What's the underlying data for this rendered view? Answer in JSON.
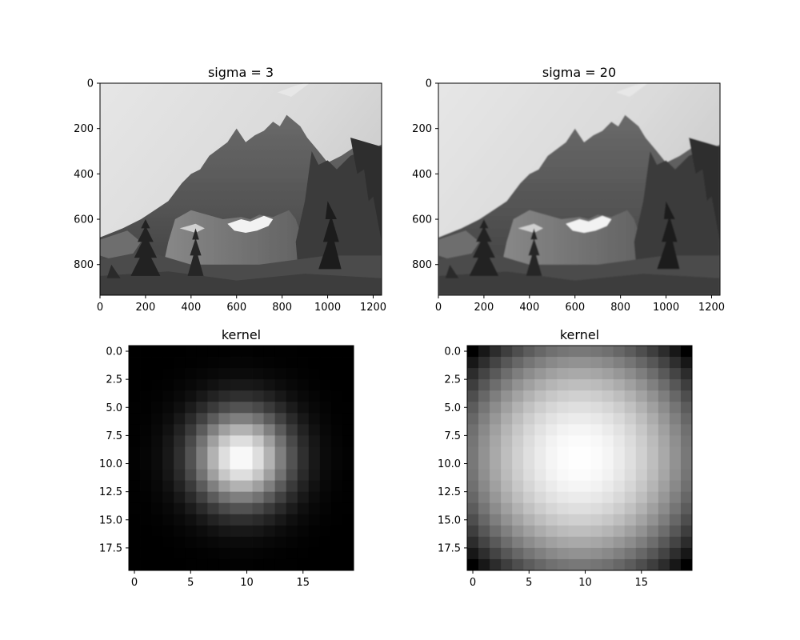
{
  "chart_data": [
    {
      "type": "image",
      "title": "sigma = 3",
      "image_size": [
        1237,
        935
      ],
      "xlim": [
        0,
        1237
      ],
      "ylim": [
        935,
        0
      ],
      "xticks": [
        0,
        200,
        400,
        600,
        800,
        1000,
        1200
      ],
      "yticks": [
        0,
        200,
        400,
        600,
        800
      ],
      "blur_sigma": 3,
      "content": "grayscale mountain landscape"
    },
    {
      "type": "image",
      "title": "sigma = 20",
      "image_size": [
        1237,
        935
      ],
      "xlim": [
        0,
        1237
      ],
      "ylim": [
        935,
        0
      ],
      "xticks": [
        0,
        200,
        400,
        600,
        800,
        1000,
        1200
      ],
      "yticks": [
        0,
        200,
        400,
        600,
        800
      ],
      "blur_sigma": 20,
      "content": "grayscale mountain landscape"
    },
    {
      "type": "heatmap",
      "title": "kernel",
      "size": 20,
      "center": [
        9.5,
        9.5
      ],
      "sigma": 3,
      "colormap": "gray",
      "xlim": [
        -0.5,
        19.5
      ],
      "ylim": [
        19.5,
        -0.5
      ],
      "xticks": [
        0,
        5,
        10,
        15
      ],
      "yticks": [
        0.0,
        2.5,
        5.0,
        7.5,
        10.0,
        12.5,
        15.0,
        17.5
      ],
      "ytick_labels": [
        "0.0",
        "2.5",
        "5.0",
        "7.5",
        "10.0",
        "12.5",
        "15.0",
        "17.5"
      ]
    },
    {
      "type": "heatmap",
      "title": "kernel",
      "size": 20,
      "center": [
        9.5,
        9.5
      ],
      "sigma": 20,
      "colormap": "gray",
      "xlim": [
        -0.5,
        19.5
      ],
      "ylim": [
        19.5,
        -0.5
      ],
      "xticks": [
        0,
        5,
        10,
        15
      ],
      "yticks": [
        0.0,
        2.5,
        5.0,
        7.5,
        10.0,
        12.5,
        15.0,
        17.5
      ],
      "ytick_labels": [
        "0.0",
        "2.5",
        "5.0",
        "7.5",
        "10.0",
        "12.5",
        "15.0",
        "17.5"
      ]
    }
  ]
}
